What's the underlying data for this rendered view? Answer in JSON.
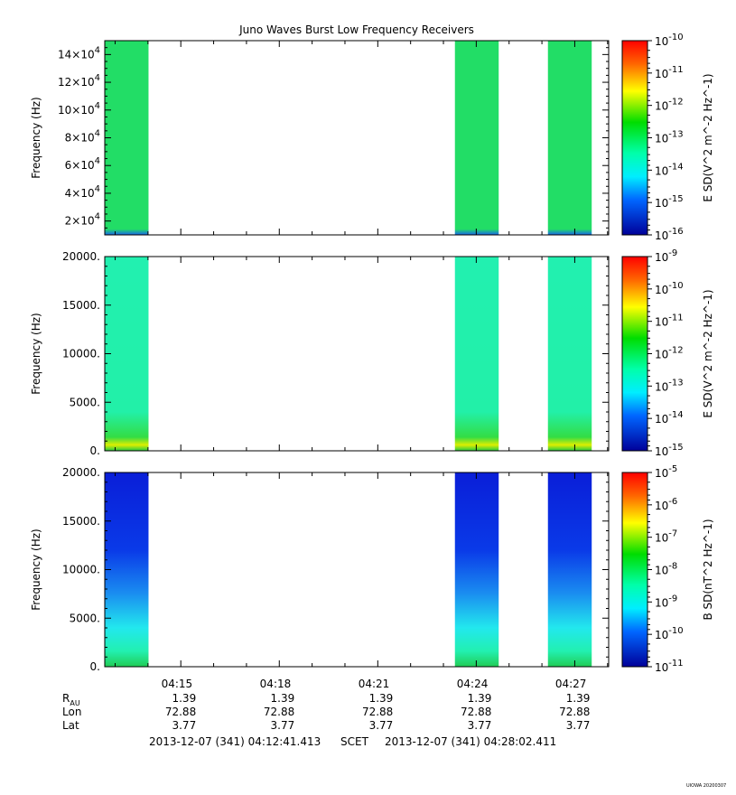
{
  "title": "Juno Waves Burst Low Frequency Receivers",
  "chart_data": [
    {
      "type": "heatmap",
      "panel": "top",
      "ylabel": "Frequency (Hz)",
      "zlabel": "E SD(V^2 m^-2 Hz^-1)",
      "y_ticks": [
        {
          "v": 20000,
          "m": "2",
          "e": "4"
        },
        {
          "v": 40000,
          "m": "4",
          "e": "4"
        },
        {
          "v": 60000,
          "m": "6",
          "e": "4"
        },
        {
          "v": 80000,
          "m": "8",
          "e": "4"
        },
        {
          "v": 100000,
          "m": "10",
          "e": "4"
        },
        {
          "v": 120000,
          "m": "12",
          "e": "4"
        },
        {
          "v": 140000,
          "m": "14",
          "e": "4"
        }
      ],
      "ylim": [
        10000,
        150000
      ],
      "z_exponents": [
        "-10",
        "-11",
        "-12",
        "-13",
        "-14",
        "-15",
        "-16"
      ],
      "colormap": "rainbow",
      "data_color": "#22dd66"
    },
    {
      "type": "heatmap",
      "panel": "middle",
      "ylabel": "Frequency (Hz)",
      "zlabel": "E SD(V^2 m^-2 Hz^-1)",
      "y_ticks": [
        {
          "v": 0,
          "t": "0."
        },
        {
          "v": 5000,
          "t": "5000."
        },
        {
          "v": 10000,
          "t": "10000."
        },
        {
          "v": 15000,
          "t": "15000."
        },
        {
          "v": 20000,
          "t": "20000."
        }
      ],
      "ylim": [
        0,
        20000
      ],
      "z_exponents": [
        "-9",
        "-10",
        "-11",
        "-12",
        "-13",
        "-14",
        "-15"
      ],
      "colormap": "rainbow",
      "data_color": "#22f0b0"
    },
    {
      "type": "heatmap",
      "panel": "bottom",
      "ylabel": "Frequency (Hz)",
      "zlabel": "B SD(nT^2 Hz^-1)",
      "y_ticks": [
        {
          "v": 0,
          "t": "0."
        },
        {
          "v": 5000,
          "t": "5000."
        },
        {
          "v": 10000,
          "t": "10000."
        },
        {
          "v": 15000,
          "t": "15000."
        },
        {
          "v": 20000,
          "t": "20000."
        }
      ],
      "ylim": [
        0,
        20000
      ],
      "z_exponents": [
        "-5",
        "-6",
        "-7",
        "-8",
        "-9",
        "-10",
        "-11"
      ],
      "colormap": "rainbow",
      "data_color": "#0a2ae0"
    }
  ],
  "time_axis": {
    "start": "04:12:41",
    "end": "04:28:02",
    "tick_labels": [
      "04:15",
      "04:18",
      "04:21",
      "04:24",
      "04:27"
    ],
    "data_blocks": [
      {
        "from": "04:12:41",
        "to": "04:14:01"
      },
      {
        "from": "04:23:21",
        "to": "04:24:41"
      },
      {
        "from": "04:26:11",
        "to": "04:27:31"
      }
    ]
  },
  "ephemeris": {
    "labels": {
      "rau": "R",
      "rau_sub": "AU",
      "lon": "Lon",
      "lat": "Lat"
    },
    "rau": [
      "1.39",
      "1.39",
      "1.39",
      "1.39",
      "1.39"
    ],
    "lon": [
      "72.88",
      "72.88",
      "72.88",
      "72.88",
      "72.88"
    ],
    "lat": [
      "3.77",
      "3.77",
      "3.77",
      "3.77",
      "3.77"
    ]
  },
  "range_text": {
    "start": "2013-12-07 (341) 04:12:41.413",
    "mid": "SCET",
    "end": "2013-12-07 (341) 04:28:02.411"
  },
  "credit": "UIOWA 20200307"
}
